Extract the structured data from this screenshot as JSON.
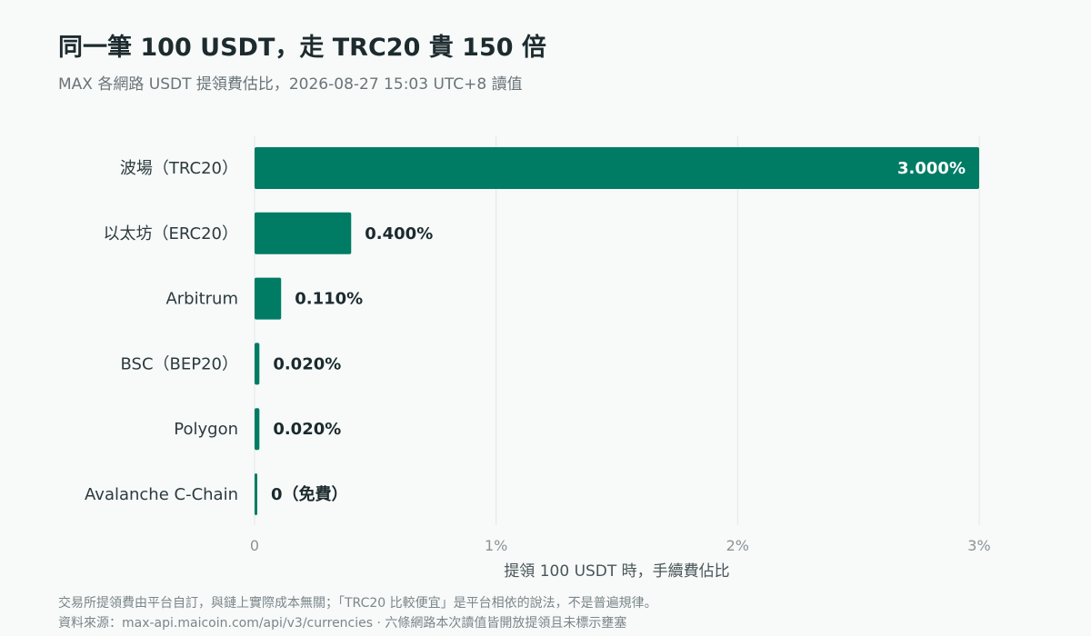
{
  "title": "同一筆 100 USDT，走 TRC20 貴 150 倍",
  "subtitle": "MAX 各網路 USDT 提領費估比，2026-08-27 15:03 UTC+8 讀值",
  "colors": {
    "bar": "#007c65",
    "grid": "#e2e8e6",
    "label": "#2c3a3e",
    "value_outside": "#1c2a2e",
    "value_inside": "#ffffff",
    "axis_text": "#8a9397"
  },
  "chart_data": {
    "type": "bar",
    "orientation": "horizontal",
    "categories": [
      "波場（TRC20）",
      "以太坊（ERC20）",
      "Arbitrum",
      "BSC（BEP20）",
      "Polygon",
      "Avalanche C-Chain"
    ],
    "values": [
      3.0,
      0.4,
      0.11,
      0.02,
      0.02,
      0
    ],
    "value_labels": [
      "3.000%",
      "0.400%",
      "0.110%",
      "0.020%",
      "0.020%",
      "0（免費）"
    ],
    "xlim": [
      0,
      3
    ],
    "xticks": [
      0,
      1,
      2,
      3
    ],
    "xtick_labels": [
      "0",
      "1%",
      "2%",
      "3%"
    ],
    "xlabel": "提領 100 USDT 時，手續費佔比",
    "ylabel": "",
    "grid": "vertical"
  },
  "footnotes": [
    "交易所提領費由平台自訂，與鏈上實際成本無關；「TRC20 比較便宜」是平台相依的說法，不是普遍規律。",
    "資料來源：max-api.maicoin.com/api/v3/currencies · 六條網路本次讀值皆開放提領且未標示壅塞"
  ]
}
